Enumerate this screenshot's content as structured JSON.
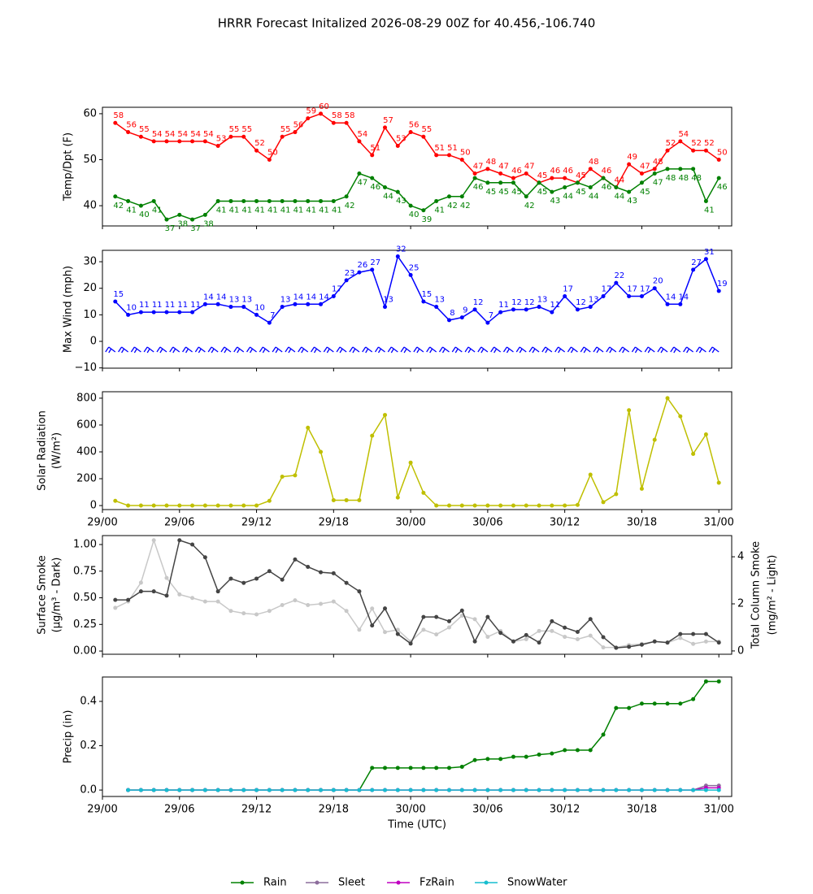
{
  "title": "HRRR Forecast Initalized 2026-08-29 00Z for 40.456,-106.740",
  "chart_data": [
    {
      "type": "line",
      "ylabel": [
        "Temp/Dpt (F)"
      ],
      "xlim": [
        0,
        49
      ],
      "ylim": [
        35.6,
        61.4
      ],
      "yticks": [
        40,
        50,
        60
      ],
      "xticks": [
        0,
        6,
        12,
        18,
        24,
        30,
        36,
        42,
        48
      ],
      "x": [
        1,
        2,
        3,
        4,
        5,
        6,
        7,
        8,
        9,
        10,
        11,
        12,
        13,
        14,
        15,
        16,
        17,
        18,
        19,
        20,
        21,
        22,
        23,
        24,
        25,
        26,
        27,
        28,
        29,
        30,
        31,
        32,
        33,
        34,
        35,
        36,
        37,
        38,
        39,
        40,
        41,
        42,
        43,
        44,
        45,
        46,
        47,
        48
      ],
      "series": [
        {
          "color": "#ff0000",
          "label_pos": "above",
          "values": [
            58,
            56,
            55,
            54,
            54,
            54,
            54,
            54,
            53,
            55,
            55,
            52,
            50,
            55,
            56,
            59,
            60,
            58,
            58,
            54,
            51,
            57,
            53,
            56,
            55,
            51,
            51,
            50,
            47,
            48,
            47,
            46,
            47,
            45,
            46,
            46,
            45,
            48,
            46,
            44,
            49,
            47,
            48,
            52,
            54,
            52,
            52,
            50
          ]
        },
        {
          "color": "#008000",
          "label_pos": "below",
          "values": [
            42,
            41,
            40,
            41,
            37,
            38,
            37,
            38,
            41,
            41,
            41,
            41,
            41,
            41,
            41,
            41,
            41,
            41,
            42,
            47,
            46,
            44,
            43,
            40,
            39,
            41,
            42,
            42,
            46,
            45,
            45,
            45,
            42,
            45,
            43,
            44,
            45,
            44,
            46,
            44,
            43,
            45,
            47,
            48,
            48,
            48,
            41,
            46
          ]
        }
      ]
    },
    {
      "type": "line",
      "ylabel": [
        "Max Wind (mph)"
      ],
      "xlim": [
        0,
        49
      ],
      "ylim": [
        -10.1,
        34.3
      ],
      "yticks": [
        {
          "value": -10,
          "label": "−10"
        },
        0,
        10,
        20,
        30
      ],
      "barbs": true,
      "xticks": [
        0,
        6,
        12,
        18,
        24,
        30,
        36,
        42,
        48
      ],
      "x": [
        1,
        2,
        3,
        4,
        5,
        6,
        7,
        8,
        9,
        10,
        11,
        12,
        13,
        14,
        15,
        16,
        17,
        18,
        19,
        20,
        21,
        22,
        23,
        24,
        25,
        26,
        27,
        28,
        29,
        30,
        31,
        32,
        33,
        34,
        35,
        36,
        37,
        38,
        39,
        40,
        41,
        42,
        43,
        44,
        45,
        46,
        47,
        48
      ],
      "series": [
        {
          "color": "#0000ff",
          "label_pos": "above",
          "values": [
            15,
            10,
            11,
            11,
            11,
            11,
            11,
            14,
            14,
            13,
            13,
            10,
            7,
            13,
            14,
            14,
            14,
            17,
            23,
            26,
            27,
            13,
            32,
            25,
            15,
            13,
            8,
            9,
            12,
            7,
            11,
            12,
            12,
            13,
            11,
            17,
            12,
            13,
            17,
            22,
            17,
            17,
            20,
            14,
            14,
            27,
            31,
            19
          ]
        }
      ]
    },
    {
      "type": "line",
      "ylabel": [
        "Solar Radiation",
        "(W/m²)"
      ],
      "xlim": [
        0,
        49
      ],
      "ylim": [
        -30,
        848
      ],
      "yticks": [
        0,
        200,
        400,
        600,
        800
      ],
      "xticks": [
        {
          "value": 0,
          "label": "29/00"
        },
        {
          "value": 6,
          "label": "29/06"
        },
        {
          "value": 12,
          "label": "29/12"
        },
        {
          "value": 18,
          "label": "29/18"
        },
        {
          "value": 24,
          "label": "30/00"
        },
        {
          "value": 30,
          "label": "30/06"
        },
        {
          "value": 36,
          "label": "30/12"
        },
        {
          "value": 42,
          "label": "30/18"
        },
        {
          "value": 48,
          "label": "31/00"
        }
      ],
      "x": [
        1,
        2,
        3,
        4,
        5,
        6,
        7,
        8,
        9,
        10,
        11,
        12,
        13,
        14,
        15,
        16,
        17,
        18,
        19,
        20,
        21,
        22,
        23,
        24,
        25,
        26,
        27,
        28,
        29,
        30,
        31,
        32,
        33,
        34,
        35,
        36,
        37,
        38,
        39,
        40,
        41,
        42,
        43,
        44,
        45,
        46,
        47,
        48
      ],
      "series": [
        {
          "color": "#bfbf00",
          "values": [
            35,
            0,
            0,
            0,
            0,
            0,
            0,
            0,
            0,
            0,
            0,
            0,
            35,
            215,
            225,
            580,
            400,
            40,
            40,
            40,
            520,
            675,
            60,
            320,
            95,
            0,
            0,
            0,
            0,
            0,
            0,
            0,
            0,
            0,
            0,
            0,
            5,
            230,
            25,
            85,
            710,
            125,
            490,
            800,
            665,
            385,
            530,
            170
          ]
        }
      ]
    },
    {
      "type": "line",
      "ylabel": [
        "Surface Smoke",
        "(µg/m³ - Dark)"
      ],
      "y2label": [
        "Total Column Smoke",
        "(mg/m² - Light)"
      ],
      "xlim": [
        0,
        49
      ],
      "ylim": [
        -0.03,
        1.084
      ],
      "yticks": [
        {
          "value": 0,
          "label": "0.00"
        },
        {
          "value": 0.25,
          "label": "0.25"
        },
        {
          "value": 0.5,
          "label": "0.50"
        },
        {
          "value": 0.75,
          "label": "0.75"
        },
        {
          "value": 1,
          "label": "1.00"
        }
      ],
      "y2lim": [
        -0.14,
        4.9
      ],
      "y2ticks": [
        0,
        2,
        4
      ],
      "xticks": [
        0,
        6,
        12,
        18,
        24,
        30,
        36,
        42,
        48
      ],
      "x": [
        1,
        2,
        3,
        4,
        5,
        6,
        7,
        8,
        9,
        10,
        11,
        12,
        13,
        14,
        15,
        16,
        17,
        18,
        19,
        20,
        21,
        22,
        23,
        24,
        25,
        26,
        27,
        28,
        29,
        30,
        31,
        32,
        33,
        34,
        35,
        36,
        37,
        38,
        39,
        40,
        41,
        42,
        43,
        44,
        45,
        46,
        47,
        48
      ],
      "series": [
        {
          "color": "#c8c8c8",
          "axis": "y2",
          "values": [
            1.83,
            2.1,
            2.9,
            4.7,
            3.1,
            2.4,
            2.25,
            2.1,
            2.1,
            1.7,
            1.6,
            1.55,
            1.7,
            1.95,
            2.15,
            1.95,
            2.0,
            2.1,
            1.7,
            0.9,
            1.8,
            0.8,
            0.9,
            0.4,
            0.9,
            0.7,
            1.0,
            1.5,
            1.35,
            0.6,
            0.85,
            0.4,
            0.5,
            0.85,
            0.85,
            0.6,
            0.5,
            0.65,
            0.15,
            0.15,
            0.25,
            0.3,
            0.4,
            0.35,
            0.55,
            0.3,
            0.4,
            0.4
          ]
        },
        {
          "color": "#444444",
          "values": [
            0.48,
            0.48,
            0.56,
            0.56,
            0.52,
            1.04,
            1.0,
            0.88,
            0.56,
            0.68,
            0.64,
            0.68,
            0.75,
            0.67,
            0.86,
            0.79,
            0.74,
            0.73,
            0.64,
            0.56,
            0.24,
            0.4,
            0.16,
            0.07,
            0.32,
            0.32,
            0.28,
            0.38,
            0.09,
            0.32,
            0.17,
            0.09,
            0.15,
            0.08,
            0.28,
            0.22,
            0.18,
            0.3,
            0.13,
            0.03,
            0.04,
            0.06,
            0.09,
            0.08,
            0.16,
            0.16,
            0.16,
            0.08
          ]
        }
      ]
    },
    {
      "type": "line",
      "ylabel": [
        "Precip (in)"
      ],
      "xlabel": "Time (UTC)",
      "legend": "bottom",
      "xlim": [
        0,
        49
      ],
      "ylim": [
        -0.029,
        0.51
      ],
      "yticks": [
        {
          "value": 0,
          "label": "0.0"
        },
        {
          "value": 0.2,
          "label": "0.2"
        },
        {
          "value": 0.4,
          "label": "0.4"
        }
      ],
      "xticks": [
        {
          "value": 0,
          "label": "29/00"
        },
        {
          "value": 6,
          "label": "29/06"
        },
        {
          "value": 12,
          "label": "29/12"
        },
        {
          "value": 18,
          "label": "29/18"
        },
        {
          "value": 24,
          "label": "30/00"
        },
        {
          "value": 30,
          "label": "30/06"
        },
        {
          "value": 36,
          "label": "30/12"
        },
        {
          "value": 42,
          "label": "30/18"
        },
        {
          "value": 48,
          "label": "31/00"
        }
      ],
      "x": [
        1,
        2,
        3,
        4,
        5,
        6,
        7,
        8,
        9,
        10,
        11,
        12,
        13,
        14,
        15,
        16,
        17,
        18,
        19,
        20,
        21,
        22,
        23,
        24,
        25,
        26,
        27,
        28,
        29,
        30,
        31,
        32,
        33,
        34,
        35,
        36,
        37,
        38,
        39,
        40,
        41,
        42,
        43,
        44,
        45,
        46,
        47,
        48
      ],
      "series": [
        {
          "name": "Rain",
          "color": "#008000",
          "values": [
            null,
            0,
            0,
            0,
            0,
            0,
            0,
            0,
            0,
            0,
            0,
            0,
            0,
            0,
            0,
            0,
            0,
            0,
            0,
            0,
            0.1,
            0.1,
            0.1,
            0.1,
            0.1,
            0.1,
            0.1,
            0.105,
            0.135,
            0.14,
            0.14,
            0.15,
            0.15,
            0.16,
            0.165,
            0.18,
            0.18,
            0.18,
            0.25,
            0.37,
            0.37,
            0.39,
            0.39,
            0.39,
            0.39,
            0.41,
            0.49,
            0.49
          ]
        },
        {
          "name": "Sleet",
          "color": "#8c6d9c",
          "values": [
            null,
            0,
            0,
            0,
            0,
            0,
            0,
            0,
            0,
            0,
            0,
            0,
            0,
            0,
            0,
            0,
            0,
            0,
            0,
            0,
            0,
            0,
            0,
            0,
            0,
            0,
            0,
            0,
            0,
            0,
            0,
            0,
            0,
            0,
            0,
            0,
            0,
            0,
            0,
            0,
            0,
            0,
            0,
            0,
            0,
            0,
            0.02,
            0.02
          ]
        },
        {
          "name": "FzRain",
          "color": "#c000c0",
          "values": [
            null,
            0,
            0,
            0,
            0,
            0,
            0,
            0,
            0,
            0,
            0,
            0,
            0,
            0,
            0,
            0,
            0,
            0,
            0,
            0,
            0,
            0,
            0,
            0,
            0,
            0,
            0,
            0,
            0,
            0,
            0,
            0,
            0,
            0,
            0,
            0,
            0,
            0,
            0,
            0,
            0,
            0,
            0,
            0,
            0,
            0,
            0.01,
            0.01
          ]
        },
        {
          "name": "SnowWater",
          "color": "#17becf",
          "values": [
            null,
            0,
            0,
            0,
            0,
            0,
            0,
            0,
            0,
            0,
            0,
            0,
            0,
            0,
            0,
            0,
            0,
            0,
            0,
            0,
            0,
            0,
            0,
            0,
            0,
            0,
            0,
            0,
            0,
            0,
            0,
            0,
            0,
            0,
            0,
            0,
            0,
            0,
            0,
            0,
            0,
            0,
            0,
            0,
            0,
            0,
            0,
            0
          ]
        }
      ]
    }
  ]
}
